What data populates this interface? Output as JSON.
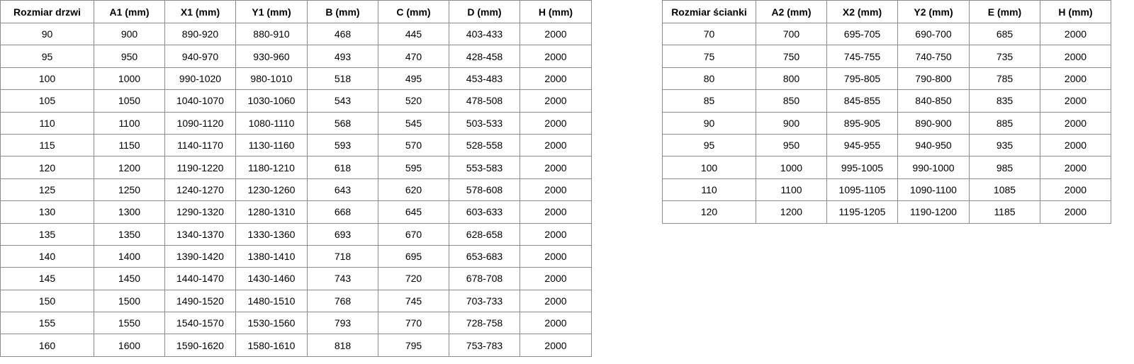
{
  "door_table": {
    "headers": [
      "Rozmiar drzwi",
      "A1 (mm)",
      "X1 (mm)",
      "Y1 (mm)",
      "B (mm)",
      "C (mm)",
      "D (mm)",
      "H (mm)"
    ],
    "rows": [
      [
        "90",
        "900",
        "890-920",
        "880-910",
        "468",
        "445",
        "403-433",
        "2000"
      ],
      [
        "95",
        "950",
        "940-970",
        "930-960",
        "493",
        "470",
        "428-458",
        "2000"
      ],
      [
        "100",
        "1000",
        "990-1020",
        "980-1010",
        "518",
        "495",
        "453-483",
        "2000"
      ],
      [
        "105",
        "1050",
        "1040-1070",
        "1030-1060",
        "543",
        "520",
        "478-508",
        "2000"
      ],
      [
        "110",
        "1100",
        "1090-1120",
        "1080-1110",
        "568",
        "545",
        "503-533",
        "2000"
      ],
      [
        "115",
        "1150",
        "1140-1170",
        "1130-1160",
        "593",
        "570",
        "528-558",
        "2000"
      ],
      [
        "120",
        "1200",
        "1190-1220",
        "1180-1210",
        "618",
        "595",
        "553-583",
        "2000"
      ],
      [
        "125",
        "1250",
        "1240-1270",
        "1230-1260",
        "643",
        "620",
        "578-608",
        "2000"
      ],
      [
        "130",
        "1300",
        "1290-1320",
        "1280-1310",
        "668",
        "645",
        "603-633",
        "2000"
      ],
      [
        "135",
        "1350",
        "1340-1370",
        "1330-1360",
        "693",
        "670",
        "628-658",
        "2000"
      ],
      [
        "140",
        "1400",
        "1390-1420",
        "1380-1410",
        "718",
        "695",
        "653-683",
        "2000"
      ],
      [
        "145",
        "1450",
        "1440-1470",
        "1430-1460",
        "743",
        "720",
        "678-708",
        "2000"
      ],
      [
        "150",
        "1500",
        "1490-1520",
        "1480-1510",
        "768",
        "745",
        "703-733",
        "2000"
      ],
      [
        "155",
        "1550",
        "1540-1570",
        "1530-1560",
        "793",
        "770",
        "728-758",
        "2000"
      ],
      [
        "160",
        "1600",
        "1590-1620",
        "1580-1610",
        "818",
        "795",
        "753-783",
        "2000"
      ]
    ]
  },
  "wall_table": {
    "headers": [
      "Rozmiar ścianki",
      "A2 (mm)",
      "X2 (mm)",
      "Y2 (mm)",
      "E (mm)",
      "H (mm)"
    ],
    "rows": [
      [
        "70",
        "700",
        "695-705",
        "690-700",
        "685",
        "2000"
      ],
      [
        "75",
        "750",
        "745-755",
        "740-750",
        "735",
        "2000"
      ],
      [
        "80",
        "800",
        "795-805",
        "790-800",
        "785",
        "2000"
      ],
      [
        "85",
        "850",
        "845-855",
        "840-850",
        "835",
        "2000"
      ],
      [
        "90",
        "900",
        "895-905",
        "890-900",
        "885",
        "2000"
      ],
      [
        "95",
        "950",
        "945-955",
        "940-950",
        "935",
        "2000"
      ],
      [
        "100",
        "1000",
        "995-1005",
        "990-1000",
        "985",
        "2000"
      ],
      [
        "110",
        "1100",
        "1095-1105",
        "1090-1100",
        "1085",
        "2000"
      ],
      [
        "120",
        "1200",
        "1195-1205",
        "1190-1200",
        "1185",
        "2000"
      ]
    ]
  }
}
